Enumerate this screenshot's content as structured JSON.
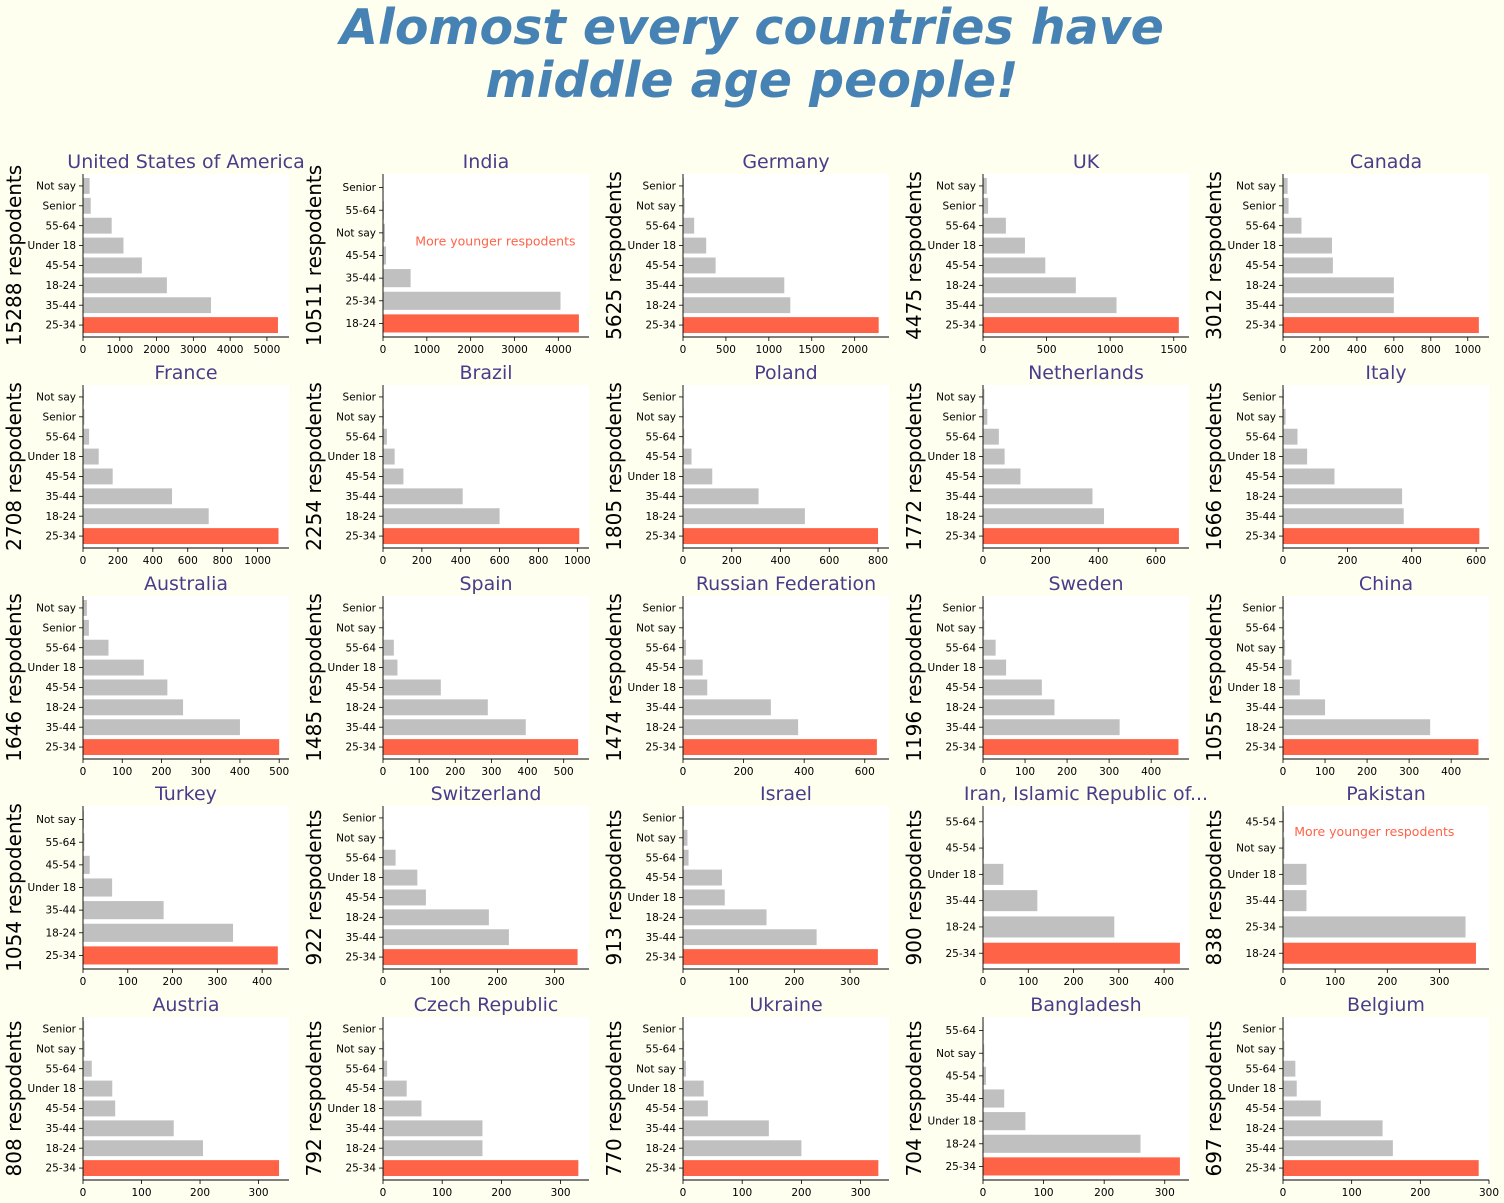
{
  "figure": {
    "title_line1": "Alomost every countries have",
    "title_line2": "middle age people!",
    "background": "#fffff0",
    "title_color": "#4682b4",
    "subplot_title_color": "#483d8b",
    "bar_color": "#c0c0c0",
    "highlight_color": "#ff6347",
    "annotation_color": "#ff6347"
  },
  "chart_data": [
    {
      "type": "bar",
      "orientation": "horizontal",
      "title": "United States of America",
      "ylabel": "15288 respodents",
      "categories": [
        "25-34",
        "35-44",
        "18-24",
        "45-54",
        "Under 18",
        "55-64",
        "Senior",
        "Not say"
      ],
      "values": [
        5300,
        3480,
        2280,
        1600,
        1100,
        780,
        210,
        180
      ],
      "highlight": "25-34",
      "xlim": [
        0,
        5600
      ],
      "xticks": [
        0,
        1000,
        2000,
        3000,
        4000,
        5000
      ]
    },
    {
      "type": "bar",
      "orientation": "horizontal",
      "title": "India",
      "ylabel": "10511 respodents",
      "categories": [
        "18-24",
        "25-34",
        "35-44",
        "45-54",
        "Not say",
        "55-64",
        "Senior"
      ],
      "values": [
        4470,
        4050,
        630,
        70,
        45,
        20,
        10
      ],
      "highlight": "18-24",
      "xlim": [
        0,
        4700
      ],
      "xticks": [
        0,
        1000,
        2000,
        3000,
        4000
      ],
      "annotation": {
        "text": "More younger respodents",
        "x": 600,
        "category": "45-54"
      }
    },
    {
      "type": "bar",
      "orientation": "horizontal",
      "title": "Germany",
      "ylabel": "5625 respodents",
      "categories": [
        "25-34",
        "18-24",
        "35-44",
        "45-54",
        "Under 18",
        "55-64",
        "Not say",
        "Senior"
      ],
      "values": [
        2280,
        1250,
        1180,
        380,
        270,
        130,
        20,
        10
      ],
      "highlight": "25-34",
      "xlim": [
        0,
        2400
      ],
      "xticks": [
        0,
        500,
        1000,
        1500,
        2000
      ]
    },
    {
      "type": "bar",
      "orientation": "horizontal",
      "title": "UK",
      "ylabel": "4475 respodents",
      "categories": [
        "25-34",
        "35-44",
        "18-24",
        "45-54",
        "Under 18",
        "55-64",
        "Senior",
        "Not say"
      ],
      "values": [
        1540,
        1050,
        730,
        490,
        330,
        180,
        40,
        30
      ],
      "highlight": "25-34",
      "xlim": [
        0,
        1620
      ],
      "xticks": [
        0,
        500,
        1000,
        1500
      ]
    },
    {
      "type": "bar",
      "orientation": "horizontal",
      "title": "Canada",
      "ylabel": "3012 respodents",
      "categories": [
        "25-34",
        "35-44",
        "18-24",
        "45-54",
        "Under 18",
        "55-64",
        "Senior",
        "Not say"
      ],
      "values": [
        1060,
        600,
        600,
        270,
        265,
        100,
        30,
        25
      ],
      "highlight": "25-34",
      "xlim": [
        0,
        1115
      ],
      "xticks": [
        0,
        200,
        400,
        600,
        800,
        1000
      ]
    },
    {
      "type": "bar",
      "orientation": "horizontal",
      "title": "France",
      "ylabel": "2708 respodents",
      "categories": [
        "25-34",
        "18-24",
        "35-44",
        "45-54",
        "Under 18",
        "55-64",
        "Senior",
        "Not say"
      ],
      "values": [
        1120,
        720,
        510,
        170,
        90,
        35,
        8,
        5
      ],
      "highlight": "25-34",
      "xlim": [
        0,
        1180
      ],
      "xticks": [
        0,
        200,
        400,
        600,
        800,
        1000
      ]
    },
    {
      "type": "bar",
      "orientation": "horizontal",
      "title": "Brazil",
      "ylabel": "2254 respodents",
      "categories": [
        "25-34",
        "18-24",
        "35-44",
        "45-54",
        "Under 18",
        "55-64",
        "Not say",
        "Senior"
      ],
      "values": [
        1010,
        600,
        410,
        105,
        60,
        20,
        5,
        3
      ],
      "highlight": "25-34",
      "xlim": [
        0,
        1060
      ],
      "xticks": [
        0,
        200,
        400,
        600,
        800,
        1000
      ]
    },
    {
      "type": "bar",
      "orientation": "horizontal",
      "title": "Poland",
      "ylabel": "1805 respodents",
      "categories": [
        "25-34",
        "18-24",
        "35-44",
        "Under 18",
        "45-54",
        "55-64",
        "Not say",
        "Senior"
      ],
      "values": [
        800,
        500,
        310,
        120,
        35,
        5,
        3,
        2
      ],
      "highlight": "25-34",
      "xlim": [
        0,
        845
      ],
      "xticks": [
        0,
        200,
        400,
        600,
        800
      ]
    },
    {
      "type": "bar",
      "orientation": "horizontal",
      "title": "Netherlands",
      "ylabel": "1772 respodents",
      "categories": [
        "25-34",
        "18-24",
        "35-44",
        "45-54",
        "Under 18",
        "55-64",
        "Senior",
        "Not say"
      ],
      "values": [
        680,
        420,
        380,
        130,
        75,
        55,
        15,
        5
      ],
      "highlight": "25-34",
      "xlim": [
        0,
        715
      ],
      "xticks": [
        0,
        200,
        400,
        600
      ]
    },
    {
      "type": "bar",
      "orientation": "horizontal",
      "title": "Italy",
      "ylabel": "1666 respodents",
      "categories": [
        "25-34",
        "35-44",
        "18-24",
        "45-54",
        "Under 18",
        "55-64",
        "Not say",
        "Senior"
      ],
      "values": [
        610,
        375,
        370,
        160,
        75,
        45,
        8,
        3
      ],
      "highlight": "25-34",
      "xlim": [
        0,
        640
      ],
      "xticks": [
        0,
        200,
        400,
        600
      ]
    },
    {
      "type": "bar",
      "orientation": "horizontal",
      "title": "Australia",
      "ylabel": "1646 respodents",
      "categories": [
        "25-34",
        "35-44",
        "18-24",
        "45-54",
        "Under 18",
        "55-64",
        "Senior",
        "Not say"
      ],
      "values": [
        500,
        400,
        255,
        215,
        155,
        65,
        15,
        10
      ],
      "highlight": "25-34",
      "xlim": [
        0,
        525
      ],
      "xticks": [
        0,
        100,
        200,
        300,
        400,
        500
      ]
    },
    {
      "type": "bar",
      "orientation": "horizontal",
      "title": "Spain",
      "ylabel": "1485 respodents",
      "categories": [
        "25-34",
        "35-44",
        "18-24",
        "45-54",
        "Under 18",
        "55-64",
        "Not say",
        "Senior"
      ],
      "values": [
        540,
        395,
        290,
        160,
        40,
        30,
        3,
        2
      ],
      "highlight": "25-34",
      "xlim": [
        0,
        570
      ],
      "xticks": [
        0,
        100,
        200,
        300,
        400,
        500
      ]
    },
    {
      "type": "bar",
      "orientation": "horizontal",
      "title": "Russian Federation",
      "ylabel": "1474 respodents",
      "categories": [
        "25-34",
        "18-24",
        "35-44",
        "Under 18",
        "45-54",
        "55-64",
        "Not say",
        "Senior"
      ],
      "values": [
        640,
        380,
        290,
        80,
        65,
        10,
        3,
        2
      ],
      "highlight": "25-34",
      "xlim": [
        0,
        680
      ],
      "xticks": [
        0,
        200,
        400,
        600
      ]
    },
    {
      "type": "bar",
      "orientation": "horizontal",
      "title": "Sweden",
      "ylabel": "1196 respodents",
      "categories": [
        "25-34",
        "35-44",
        "18-24",
        "45-54",
        "Under 18",
        "55-64",
        "Not say",
        "Senior"
      ],
      "values": [
        465,
        325,
        170,
        140,
        55,
        30,
        3,
        2
      ],
      "highlight": "25-34",
      "xlim": [
        0,
        490
      ],
      "xticks": [
        0,
        100,
        200,
        300,
        400
      ]
    },
    {
      "type": "bar",
      "orientation": "horizontal",
      "title": "China",
      "ylabel": "1055 respodents",
      "categories": [
        "25-34",
        "18-24",
        "35-44",
        "Under 18",
        "45-54",
        "Not say",
        "55-64",
        "Senior"
      ],
      "values": [
        465,
        350,
        100,
        40,
        20,
        5,
        3,
        2
      ],
      "highlight": "25-34",
      "xlim": [
        0,
        490
      ],
      "xticks": [
        0,
        100,
        200,
        300,
        400
      ]
    },
    {
      "type": "bar",
      "orientation": "horizontal",
      "title": "Turkey",
      "ylabel": "1054 respodents",
      "categories": [
        "25-34",
        "18-24",
        "35-44",
        "Under 18",
        "45-54",
        "55-64",
        "Not say"
      ],
      "values": [
        435,
        335,
        180,
        65,
        15,
        3,
        2
      ],
      "highlight": "25-34",
      "xlim": [
        0,
        460
      ],
      "xticks": [
        0,
        100,
        200,
        300,
        400
      ]
    },
    {
      "type": "bar",
      "orientation": "horizontal",
      "title": "Switzerland",
      "ylabel": "922 respodents",
      "categories": [
        "25-34",
        "35-44",
        "18-24",
        "45-54",
        "Under 18",
        "55-64",
        "Not say",
        "Senior"
      ],
      "values": [
        340,
        220,
        185,
        75,
        60,
        22,
        2,
        1
      ],
      "highlight": "25-34",
      "xlim": [
        0,
        360
      ],
      "xticks": [
        0,
        100,
        200,
        300
      ]
    },
    {
      "type": "bar",
      "orientation": "horizontal",
      "title": "Israel",
      "ylabel": "913 respodents",
      "categories": [
        "25-34",
        "35-44",
        "18-24",
        "Under 18",
        "45-54",
        "55-64",
        "Not say",
        "Senior"
      ],
      "values": [
        350,
        240,
        150,
        75,
        70,
        10,
        8,
        2
      ],
      "highlight": "25-34",
      "xlim": [
        0,
        370
      ],
      "xticks": [
        0,
        100,
        200,
        300
      ]
    },
    {
      "type": "bar",
      "orientation": "horizontal",
      "title": "Iran, Islamic Republic of...",
      "ylabel": "900 respodents",
      "categories": [
        "25-34",
        "18-24",
        "35-44",
        "Under 18",
        "45-54",
        "55-64"
      ],
      "values": [
        435,
        290,
        120,
        45,
        2,
        1
      ],
      "highlight": "25-34",
      "xlim": [
        0,
        455
      ],
      "xticks": [
        0,
        100,
        200,
        300,
        400
      ]
    },
    {
      "type": "bar",
      "orientation": "horizontal",
      "title": "Pakistan",
      "ylabel": "838 respodents",
      "categories": [
        "18-24",
        "25-34",
        "35-44",
        "Under 18",
        "Not say",
        "45-54"
      ],
      "values": [
        370,
        350,
        45,
        45,
        3,
        2
      ],
      "highlight": "18-24",
      "xlim": [
        0,
        395
      ],
      "xticks": [
        0,
        100,
        200,
        300
      ],
      "annotation": {
        "text": "More younger respodents",
        "x": 10,
        "category": "Not say"
      }
    },
    {
      "type": "bar",
      "orientation": "horizontal",
      "title": "Austria",
      "ylabel": "808 respodents",
      "categories": [
        "25-34",
        "18-24",
        "35-44",
        "45-54",
        "Under 18",
        "55-64",
        "Not say",
        "Senior"
      ],
      "values": [
        335,
        205,
        155,
        55,
        50,
        15,
        3,
        2
      ],
      "highlight": "25-34",
      "xlim": [
        0,
        352
      ],
      "xticks": [
        0,
        100,
        200,
        300
      ]
    },
    {
      "type": "bar",
      "orientation": "horizontal",
      "title": "Czech Republic",
      "ylabel": "792 respodents",
      "categories": [
        "25-34",
        "18-24",
        "35-44",
        "Under 18",
        "45-54",
        "55-64",
        "Not say",
        "Senior"
      ],
      "values": [
        330,
        168,
        168,
        65,
        40,
        7,
        2,
        1
      ],
      "highlight": "25-34",
      "xlim": [
        0,
        348
      ],
      "xticks": [
        0,
        100,
        200,
        300
      ]
    },
    {
      "type": "bar",
      "orientation": "horizontal",
      "title": "Ukraine",
      "ylabel": "770 respodents",
      "categories": [
        "25-34",
        "18-24",
        "35-44",
        "45-54",
        "Under 18",
        "Not say",
        "55-64",
        "Senior"
      ],
      "values": [
        330,
        200,
        145,
        42,
        35,
        5,
        2,
        1
      ],
      "highlight": "25-34",
      "xlim": [
        0,
        348
      ],
      "xticks": [
        0,
        100,
        200,
        300
      ]
    },
    {
      "type": "bar",
      "orientation": "horizontal",
      "title": "Bangladesh",
      "ylabel": "704 respodents",
      "categories": [
        "25-34",
        "18-24",
        "Under 18",
        "35-44",
        "45-54",
        "Not say",
        "55-64"
      ],
      "values": [
        325,
        260,
        70,
        35,
        5,
        2,
        1
      ],
      "highlight": "25-34",
      "xlim": [
        0,
        340
      ],
      "xticks": [
        0,
        100,
        200,
        300
      ]
    },
    {
      "type": "bar",
      "orientation": "horizontal",
      "title": "Belgium",
      "ylabel": "697 respodents",
      "categories": [
        "25-34",
        "35-44",
        "18-24",
        "45-54",
        "Under 18",
        "55-64",
        "Not say",
        "Senior"
      ],
      "values": [
        285,
        160,
        145,
        55,
        20,
        18,
        2,
        1
      ],
      "highlight": "25-34",
      "xlim": [
        0,
        300
      ],
      "xticks": [
        0,
        100,
        200,
        300
      ]
    }
  ]
}
